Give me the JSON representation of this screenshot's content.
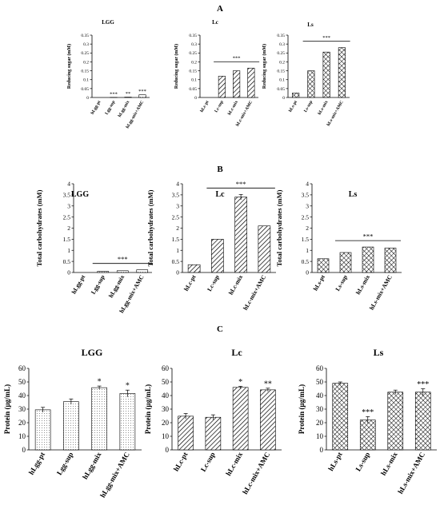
{
  "panels": [
    {
      "letter": "A",
      "ylabel": "Reducing sugar (mM)"
    },
    {
      "letter": "B",
      "ylabel": "Total carbohydrates (mM)"
    },
    {
      "letter": "C",
      "ylabel": "Protein (µg/mL)"
    }
  ],
  "patterns": {
    "LGG": "dots",
    "Lc": "diag",
    "Ls": "cross"
  },
  "chart_data": [
    {
      "type": "bar",
      "panel": "A",
      "title": "LGG",
      "ylabel": "Reducing sugar (mM)",
      "categories": [
        "hLgg-pt",
        "Lgg-sup",
        "hLgg-mix",
        "hLgg-mix+AMC"
      ],
      "values": [
        0.0,
        0.001,
        0.002,
        0.015
      ],
      "ylim": [
        0,
        0.35
      ],
      "yticks": [
        "0",
        "0.05",
        "0.1",
        "0.15",
        "0.2",
        "0.25",
        "0.3",
        "0.35"
      ],
      "annotations": [
        "",
        "***",
        "**",
        "***"
      ],
      "bracket": null
    },
    {
      "type": "bar",
      "panel": "A",
      "title": "Lc",
      "ylabel": "Reducing sugar (mM)",
      "categories": [
        "hLc-pt",
        "Lc-sup",
        "hLc-mix",
        "hLc-mix+AMC"
      ],
      "values": [
        0.0,
        0.12,
        0.15,
        0.165
      ],
      "ylim": [
        0,
        0.35
      ],
      "yticks": [
        "0",
        "0.05",
        "0.1",
        "0.15",
        "0.2",
        "0.25",
        "0.3",
        "0.35"
      ],
      "annotations": [
        "",
        "",
        "",
        ""
      ],
      "bracket": {
        "label": "***",
        "from": 1,
        "to": 3
      }
    },
    {
      "type": "bar",
      "panel": "A",
      "title": "Ls",
      "ylabel": "Reducing sugar (mM)",
      "categories": [
        "hLs-pt",
        "Ls-sup",
        "hLs-mix",
        "hLs-mix+AMC"
      ],
      "values": [
        0.025,
        0.15,
        0.255,
        0.28
      ],
      "ylim": [
        0,
        0.35
      ],
      "yticks": [
        "0",
        "0.05",
        "0.1",
        "0.15",
        "0.2",
        "0.25",
        "0.3",
        "0.35"
      ],
      "annotations": [
        "",
        "",
        "",
        ""
      ],
      "bracket": {
        "label": "***",
        "from": 1,
        "to": 3
      }
    },
    {
      "type": "bar",
      "panel": "B",
      "title": "LGG",
      "ylabel": "Total carbohydrates (mM)",
      "categories": [
        "hLgg-pt",
        "Lgg-sup",
        "hLgg-mix",
        "hLgg-mix+AMC"
      ],
      "values": [
        0.0,
        0.05,
        0.08,
        0.12
      ],
      "ylim": [
        0,
        4
      ],
      "yticks": [
        "0",
        "0.5",
        "1",
        "1.5",
        "2",
        "2.5",
        "3",
        "3.5",
        "4"
      ],
      "annotations": [
        "",
        "",
        "",
        ""
      ],
      "bracket": {
        "label": "***",
        "from": 1,
        "to": 3
      }
    },
    {
      "type": "bar",
      "panel": "B",
      "title": "Lc",
      "ylabel": "Total carbohydrates (mM)",
      "categories": [
        "hLc-pt",
        "Lc-sup",
        "hLc-mix",
        "hLc-mix+AMC"
      ],
      "values": [
        0.35,
        1.5,
        3.4,
        2.1
      ],
      "errors": [
        0,
        0,
        0.12,
        0
      ],
      "ylim": [
        0,
        4
      ],
      "yticks": [
        "0",
        "0.5",
        "1",
        "1.5",
        "2",
        "2.5",
        "3",
        "3.5",
        "4"
      ],
      "annotations": [
        "",
        "",
        "",
        ""
      ],
      "bracket": {
        "label": "***",
        "from": 1,
        "to": 3
      }
    },
    {
      "type": "bar",
      "panel": "B",
      "title": "Ls",
      "ylabel": "Total carbohydrates (mM)",
      "categories": [
        "hLs-pt",
        "Ls-sup",
        "hLs-mix",
        "hLs-mix+AMC"
      ],
      "values": [
        0.62,
        0.9,
        1.15,
        1.1
      ],
      "ylim": [
        0,
        4
      ],
      "yticks": [
        "0",
        "0.5",
        "1",
        "1.5",
        "2",
        "2.5",
        "3",
        "3.5",
        "4"
      ],
      "annotations": [
        "",
        "",
        "",
        ""
      ],
      "bracket": {
        "label": "***",
        "from": 1,
        "to": 3
      }
    },
    {
      "type": "bar",
      "panel": "C",
      "title": "LGG",
      "ylabel": "Protein (µg/mL)",
      "categories": [
        "hLgg-pt",
        "Lgg-sup",
        "hLgg-mix",
        "hLgg-mix+AMC"
      ],
      "values": [
        29.5,
        35.5,
        45.8,
        41.5
      ],
      "errors": [
        1.8,
        2.0,
        1.2,
        2.5
      ],
      "ylim": [
        0,
        60
      ],
      "yticks": [
        "0",
        "10",
        "20",
        "30",
        "40",
        "50",
        "60"
      ],
      "annotations": [
        "",
        "",
        "*",
        "*"
      ],
      "bracket": null
    },
    {
      "type": "bar",
      "panel": "C",
      "title": "Lc",
      "ylabel": "Protein (µg/mL)",
      "categories": [
        "hLc-pt",
        "Lc-sup",
        "hLc-mix",
        "hLc-mix+AMC"
      ],
      "values": [
        24.8,
        24.0,
        46.0,
        44.2
      ],
      "errors": [
        2.0,
        1.8,
        0.8,
        1.2
      ],
      "ylim": [
        0,
        60
      ],
      "yticks": [
        "0",
        "10",
        "20",
        "30",
        "40",
        "50",
        "60"
      ],
      "annotations": [
        "",
        "",
        "*",
        "**"
      ],
      "bracket": null
    },
    {
      "type": "bar",
      "panel": "C",
      "title": "Ls",
      "ylabel": "Protein (µg/mL)",
      "categories": [
        "hLs-pt",
        "Ls-sup",
        "hLs-mix",
        "hLs-mix+AMC"
      ],
      "values": [
        49.0,
        22.0,
        42.5,
        42.5
      ],
      "errors": [
        1.0,
        2.5,
        1.5,
        2.5
      ],
      "ylim": [
        0,
        60
      ],
      "yticks": [
        "0",
        "10",
        "20",
        "30",
        "40",
        "50",
        "60"
      ],
      "annotations": [
        "",
        "***",
        "",
        "***"
      ],
      "bracket": null
    }
  ]
}
